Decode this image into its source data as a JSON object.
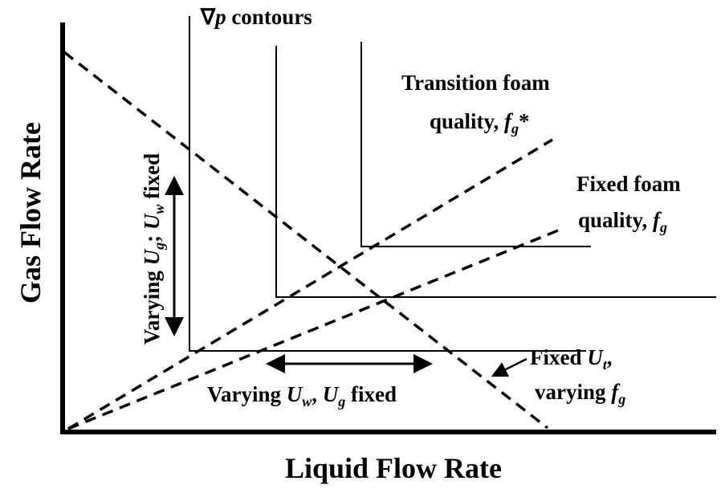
{
  "axes": {
    "x_label": "Liquid Flow Rate",
    "y_label": "Gas Flow Rate"
  },
  "labels": {
    "contours": [
      "∇",
      "p",
      " contours"
    ],
    "transition": {
      "line1": "Transition foam",
      "line2": [
        "quality, ",
        "f",
        "g",
        "*"
      ]
    },
    "fixed_quality": {
      "line1": "Fixed foam",
      "line2": [
        "quality, ",
        "f",
        "g"
      ]
    },
    "varying_ug": [
      "Varying ",
      "U",
      "g",
      "; ",
      "U",
      "w",
      " fixed"
    ],
    "varying_uw": [
      "Varying ",
      "U",
      "w",
      ", ",
      "U",
      "g",
      " fixed"
    ],
    "fixed_ut": {
      "line1": [
        "Fixed ",
        "U",
        "t",
        ","
      ],
      "line2": [
        "varying ",
        "f",
        "g"
      ]
    }
  }
}
